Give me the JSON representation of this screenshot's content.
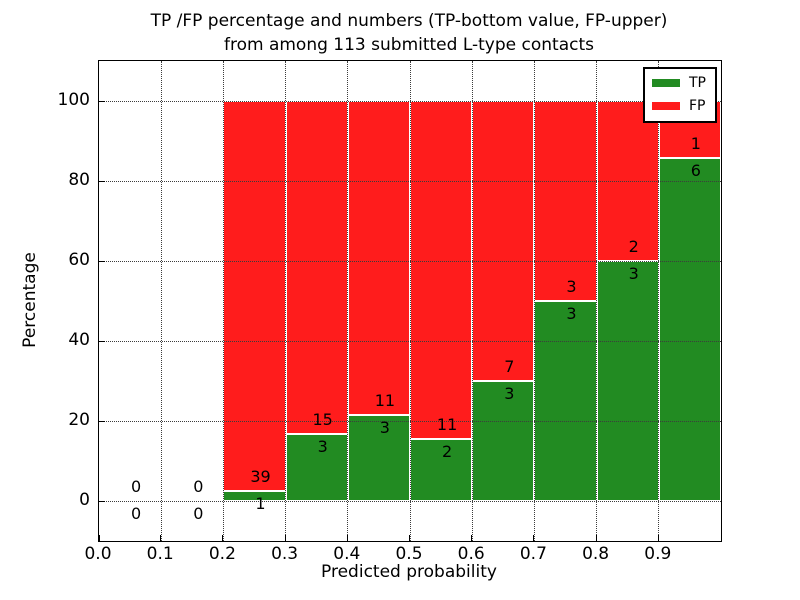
{
  "chart_data": {
    "type": "bar",
    "stacked": true,
    "title": "TP /FP percentage and numbers (TP-bottom value, FP-upper) from among 113 submitted L-type contacts",
    "title_lines": [
      "TP /FP percentage and numbers (TP-bottom value, FP-upper)",
      "from among 113 submitted L-type contacts"
    ],
    "xlabel": "Predicted probability",
    "ylabel": "Percentage",
    "xlim": [
      0.0,
      1.0
    ],
    "ylim": [
      -10,
      110
    ],
    "xticks": [
      "0.0",
      "0.1",
      "0.2",
      "0.3",
      "0.4",
      "0.5",
      "0.6",
      "0.7",
      "0.8",
      "0.9"
    ],
    "yticks": [
      "0",
      "20",
      "40",
      "60",
      "80",
      "100"
    ],
    "grid": "dotted",
    "total_contacts": 113,
    "legend": {
      "position": "upper-right",
      "items": [
        {
          "label": "TP",
          "color": "#228B22"
        },
        {
          "label": "FP",
          "color": "#FF1C1C"
        }
      ]
    },
    "bins": [
      {
        "range": [
          0.0,
          0.1
        ],
        "tp": 0,
        "fp": 0,
        "tp_pct": 0,
        "fp_pct": 0
      },
      {
        "range": [
          0.1,
          0.2
        ],
        "tp": 0,
        "fp": 0,
        "tp_pct": 0,
        "fp_pct": 0
      },
      {
        "range": [
          0.2,
          0.3
        ],
        "tp": 1,
        "fp": 39,
        "tp_pct": 2.5,
        "fp_pct": 97.5
      },
      {
        "range": [
          0.3,
          0.4
        ],
        "tp": 3,
        "fp": 15,
        "tp_pct": 16.67,
        "fp_pct": 83.33
      },
      {
        "range": [
          0.4,
          0.5
        ],
        "tp": 3,
        "fp": 11,
        "tp_pct": 21.43,
        "fp_pct": 78.57
      },
      {
        "range": [
          0.5,
          0.6
        ],
        "tp": 2,
        "fp": 11,
        "tp_pct": 15.38,
        "fp_pct": 84.62
      },
      {
        "range": [
          0.6,
          0.7
        ],
        "tp": 3,
        "fp": 7,
        "tp_pct": 30.0,
        "fp_pct": 70.0
      },
      {
        "range": [
          0.7,
          0.8
        ],
        "tp": 3,
        "fp": 3,
        "tp_pct": 50.0,
        "fp_pct": 50.0
      },
      {
        "range": [
          0.8,
          0.9
        ],
        "tp": 3,
        "fp": 2,
        "tp_pct": 60.0,
        "fp_pct": 40.0
      },
      {
        "range": [
          0.9,
          1.0
        ],
        "tp": 6,
        "fp": 1,
        "tp_pct": 85.71,
        "fp_pct": 14.29
      }
    ]
  }
}
